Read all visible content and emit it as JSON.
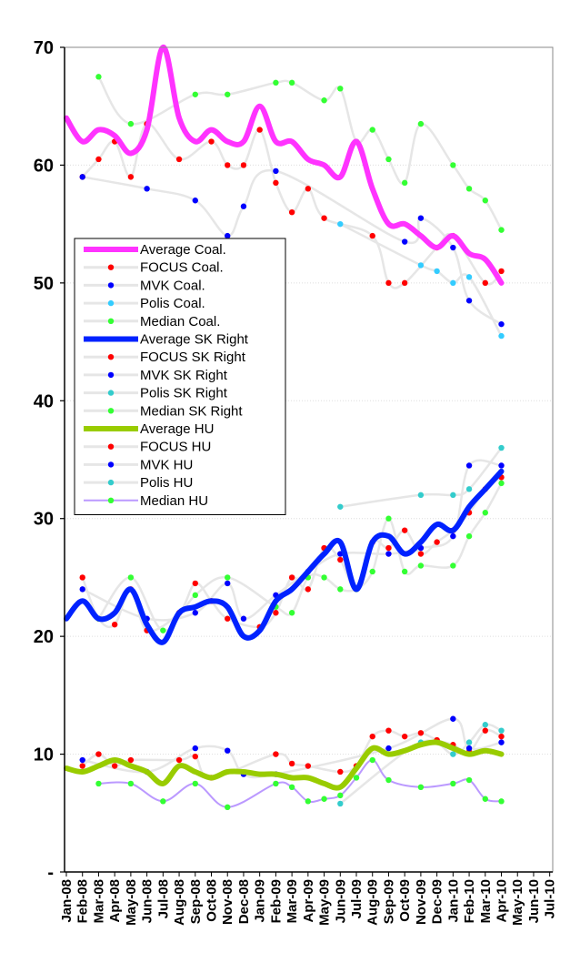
{
  "chart_data": {
    "type": "line",
    "title": "",
    "xlabel": "",
    "ylabel": "",
    "ylim": [
      0,
      70
    ],
    "yticks": [
      "-",
      "10",
      "20",
      "30",
      "40",
      "50",
      "60",
      "70"
    ],
    "grid": true,
    "legend_position": "left",
    "categories": [
      "Jan-08",
      "Feb-08",
      "Mar-08",
      "Apr-08",
      "May-08",
      "Jun-08",
      "Jul-08",
      "Aug-08",
      "Sep-08",
      "Oct-08",
      "Nov-08",
      "Dec-08",
      "Jan-09",
      "Feb-09",
      "Mar-09",
      "Apr-09",
      "May-09",
      "Jun-09",
      "Jul-09",
      "Aug-09",
      "Sep-09",
      "Oct-09",
      "Nov-09",
      "Dec-09",
      "Jan-10",
      "Feb-10",
      "Mar-10",
      "Apr-10",
      "May-10",
      "Jun-10",
      "Jul-10"
    ],
    "series": [
      {
        "name": "Average Coal.",
        "style": "thick",
        "color": "#ff33ff",
        "x": [
          0,
          1,
          2,
          3,
          4,
          5,
          6,
          7,
          8,
          9,
          10,
          11,
          12,
          13,
          14,
          15,
          16,
          17,
          18,
          19,
          20,
          21,
          22,
          23,
          24,
          25,
          26,
          27
        ],
        "y": [
          64,
          62,
          63,
          62.5,
          61,
          63,
          70,
          64,
          62,
          63,
          62,
          62,
          65,
          62,
          62,
          60.5,
          60,
          59,
          62,
          58,
          55,
          55,
          54,
          53,
          54,
          52.5,
          52,
          50
        ]
      },
      {
        "name": "FOCUS Coal.",
        "style": "marker",
        "color": "#ff0000",
        "x": [
          1,
          2,
          3,
          4,
          5,
          7,
          9,
          10,
          11,
          12,
          13,
          14,
          15,
          16,
          19,
          20,
          21,
          23,
          24,
          26,
          27
        ],
        "y": [
          59,
          60.5,
          62,
          59,
          63.5,
          60.5,
          62,
          60,
          60,
          63,
          58.5,
          56,
          58,
          55.5,
          54,
          50,
          50,
          53,
          54,
          50,
          51
        ]
      },
      {
        "name": "MVK Coal.",
        "style": "marker",
        "color": "#0000ff",
        "x": [
          1,
          5,
          8,
          10,
          11,
          13,
          21,
          22,
          24,
          25,
          27
        ],
        "y": [
          59,
          58,
          57,
          54,
          56.5,
          59.5,
          53.5,
          55.5,
          53,
          48.5,
          46.5
        ]
      },
      {
        "name": "Polis Coal.",
        "style": "marker",
        "color": "#33ccff",
        "x": [
          17,
          22,
          23,
          24,
          25,
          27
        ],
        "y": [
          55,
          51.5,
          51,
          50,
          50.5,
          45.5
        ]
      },
      {
        "name": "Median Coal.",
        "style": "marker",
        "color": "#33ff33",
        "x": [
          2,
          4,
          8,
          10,
          13,
          14,
          16,
          17,
          18,
          19,
          20,
          21,
          22,
          24,
          25,
          26,
          27
        ],
        "y": [
          67.5,
          63.5,
          66,
          66,
          67,
          67,
          65.5,
          66.5,
          62,
          63,
          60.5,
          58.5,
          63.5,
          60,
          58,
          57,
          54.5
        ]
      },
      {
        "name": "Average SK Right",
        "style": "thick",
        "color": "#0022ff",
        "x": [
          0,
          1,
          2,
          3,
          4,
          5,
          6,
          7,
          8,
          9,
          10,
          11,
          12,
          13,
          14,
          15,
          16,
          17,
          18,
          19,
          20,
          21,
          22,
          23,
          24,
          25,
          26,
          27
        ],
        "y": [
          21.5,
          23,
          21.5,
          22,
          24,
          21,
          19.5,
          22,
          22.5,
          23,
          22.5,
          20,
          20.5,
          23,
          24,
          25.5,
          27,
          28,
          24,
          28,
          28.5,
          27,
          28,
          29.5,
          29,
          31,
          32.5,
          34
        ]
      },
      {
        "name": "FOCUS SK Right",
        "style": "marker",
        "color": "#ff0000",
        "x": [
          1,
          2,
          3,
          4,
          5,
          7,
          8,
          9,
          10,
          12,
          13,
          14,
          15,
          16,
          17,
          18,
          19,
          20,
          21,
          22,
          23,
          24,
          25,
          26,
          27
        ],
        "y": [
          25,
          21.5,
          21,
          24,
          20.5,
          22,
          24.5,
          23,
          21.5,
          20.8,
          22,
          25,
          24,
          27.5,
          26.5,
          24,
          28,
          27.5,
          29,
          27,
          28,
          29,
          30.5,
          32.5,
          33.5
        ]
      },
      {
        "name": "MVK SK Right",
        "style": "marker",
        "color": "#0000ff",
        "x": [
          1,
          5,
          8,
          10,
          11,
          13,
          15,
          17,
          20,
          22,
          24,
          25,
          27
        ],
        "y": [
          24,
          21.5,
          22,
          24.5,
          21.5,
          23.5,
          25.5,
          27,
          27,
          27.5,
          28.5,
          34.5,
          34.5
        ]
      },
      {
        "name": "Polis SK Right",
        "style": "marker",
        "color": "#33cccc",
        "x": [
          17,
          22,
          24,
          25,
          27
        ],
        "y": [
          31,
          32,
          32,
          32.5,
          36
        ]
      },
      {
        "name": "Median SK Right",
        "style": "marker",
        "color": "#33ff33",
        "x": [
          2,
          4,
          6,
          8,
          10,
          13,
          14,
          15,
          16,
          17,
          18,
          19,
          20,
          21,
          22,
          24,
          25,
          26,
          27
        ],
        "y": [
          21.5,
          25,
          20.5,
          23.5,
          25,
          22.5,
          22,
          25,
          25,
          24,
          24,
          25.5,
          30,
          25.5,
          26,
          26,
          28.5,
          30.5,
          33
        ]
      },
      {
        "name": "Average HU",
        "style": "thick",
        "color": "#99cc00",
        "x": [
          0,
          1,
          2,
          3,
          4,
          5,
          6,
          7,
          8,
          9,
          10,
          11,
          12,
          13,
          14,
          15,
          16,
          17,
          18,
          19,
          20,
          21,
          22,
          23,
          24,
          25,
          26,
          27
        ],
        "y": [
          8.8,
          8.5,
          9,
          9.5,
          9,
          8.5,
          7.5,
          9,
          8.5,
          8,
          8.5,
          8.5,
          8.3,
          8.3,
          8,
          8,
          7.5,
          7.2,
          8.8,
          10.5,
          10,
          10.3,
          10.8,
          11,
          10.5,
          10,
          10.3,
          10
        ]
      },
      {
        "name": "FOCUS HU",
        "style": "marker",
        "color": "#ff0000",
        "x": [
          1,
          2,
          3,
          4,
          7,
          8,
          9,
          13,
          14,
          15,
          17,
          18,
          19,
          20,
          21,
          22,
          23,
          24,
          25,
          26,
          27
        ],
        "y": [
          9,
          10,
          9,
          9.5,
          9.5,
          9.8,
          8,
          10,
          9.2,
          9,
          8.5,
          9,
          11.5,
          12,
          11.5,
          11.8,
          11.2,
          10.8,
          10.2,
          12,
          11.5
        ]
      },
      {
        "name": "MVK HU",
        "style": "marker",
        "color": "#0000ff",
        "x": [
          1,
          5,
          8,
          10,
          11,
          13,
          20,
          24,
          25,
          27
        ],
        "y": [
          9.5,
          8.5,
          10.5,
          10.3,
          8.3,
          8.3,
          10.5,
          13,
          10.5,
          11
        ]
      },
      {
        "name": "Polis HU",
        "style": "marker",
        "color": "#33cccc",
        "x": [
          17,
          22,
          24,
          25,
          26,
          27
        ],
        "y": [
          5.8,
          11,
          10,
          11,
          12.5,
          12
        ]
      },
      {
        "name": "Median HU",
        "style": "line-marker",
        "color": "#bb99ff",
        "markerColor": "#33ff33",
        "x": [
          2,
          4,
          6,
          8,
          10,
          13,
          14,
          15,
          16,
          17,
          18,
          19,
          20,
          22,
          24,
          25,
          26,
          27
        ],
        "y": [
          7.5,
          7.5,
          6,
          7.5,
          5.5,
          7.5,
          7.2,
          6,
          6.2,
          6.5,
          8,
          9.5,
          7.8,
          7.2,
          7.5,
          7.8,
          6.2,
          6
        ]
      }
    ]
  }
}
